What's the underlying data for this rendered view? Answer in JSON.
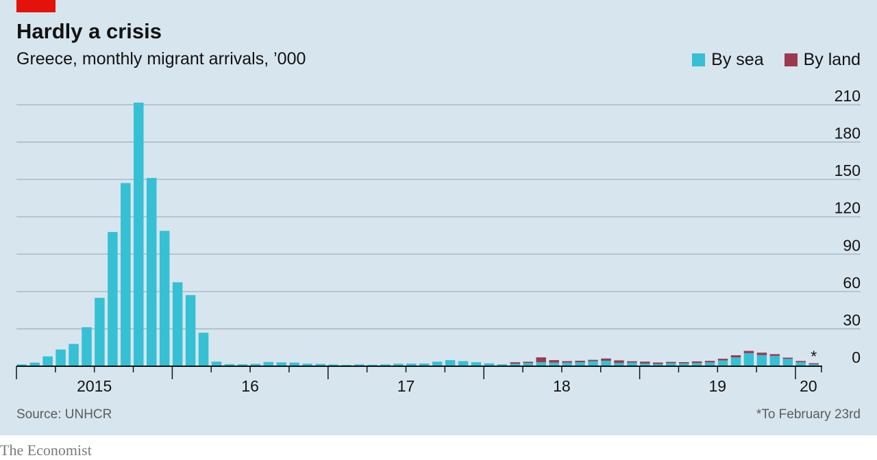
{
  "header": {
    "title": "Hardly a crisis",
    "subtitle": "Greece, monthly migrant arrivals, ’000"
  },
  "legend": [
    {
      "label": "By sea",
      "color": "#36c0d4"
    },
    {
      "label": "By land",
      "color": "#9b3a4f"
    }
  ],
  "footer": {
    "source": "Source: UNHCR",
    "footnote": "*To February 23rd",
    "brand": "The Economist"
  },
  "colors": {
    "panel": "#d7e5ee",
    "accent": "#e3120b",
    "grid": "#9fb4c2",
    "axis": "#121212"
  },
  "chart_data": {
    "type": "bar",
    "stacked": true,
    "ylim": [
      0,
      210
    ],
    "yticks": [
      0,
      30,
      60,
      90,
      120,
      150,
      180,
      210
    ],
    "y_axis_side": "right",
    "grid": true,
    "legend_position": "top-right",
    "xtick_labels": [
      {
        "label": "2015",
        "year": 2015
      },
      {
        "label": "16",
        "year": 2016
      },
      {
        "label": "17",
        "year": 2017
      },
      {
        "label": "18",
        "year": 2018
      },
      {
        "label": "19",
        "year": 2019
      },
      {
        "label": "20",
        "year": 2020
      }
    ],
    "categories": [
      "2015-01",
      "2015-02",
      "2015-03",
      "2015-04",
      "2015-05",
      "2015-06",
      "2015-07",
      "2015-08",
      "2015-09",
      "2015-10",
      "2015-11",
      "2015-12",
      "2016-01",
      "2016-02",
      "2016-03",
      "2016-04",
      "2016-05",
      "2016-06",
      "2016-07",
      "2016-08",
      "2016-09",
      "2016-10",
      "2016-11",
      "2016-12",
      "2017-01",
      "2017-02",
      "2017-03",
      "2017-04",
      "2017-05",
      "2017-06",
      "2017-07",
      "2017-08",
      "2017-09",
      "2017-10",
      "2017-11",
      "2017-12",
      "2018-01",
      "2018-02",
      "2018-03",
      "2018-04",
      "2018-05",
      "2018-06",
      "2018-07",
      "2018-08",
      "2018-09",
      "2018-10",
      "2018-11",
      "2018-12",
      "2019-01",
      "2019-02",
      "2019-03",
      "2019-04",
      "2019-05",
      "2019-06",
      "2019-07",
      "2019-08",
      "2019-09",
      "2019-10",
      "2019-11",
      "2019-12",
      "2020-01",
      "2020-02"
    ],
    "series": [
      {
        "name": "By sea",
        "values": [
          1.5,
          2.9,
          7.9,
          13.4,
          17.9,
          31.3,
          54.9,
          107.8,
          147.1,
          211.7,
          151.2,
          108.7,
          67.4,
          57.1,
          26.9,
          3.7,
          1.7,
          1.6,
          1.9,
          3.4,
          3.1,
          2.9,
          2.0,
          1.8,
          1.4,
          1.1,
          1.5,
          1.2,
          1.5,
          2.0,
          2.1,
          2.2,
          3.7,
          4.9,
          4.1,
          3.2,
          2.3,
          1.6,
          2.0,
          2.6,
          3.2,
          2.9,
          2.9,
          3.2,
          4.1,
          4.4,
          2.6,
          3.0,
          2.2,
          1.8,
          2.5,
          2.3,
          2.6,
          3.1,
          4.7,
          7.1,
          10.5,
          8.9,
          8.3,
          5.9,
          3.2,
          1.6
        ]
      },
      {
        "name": "By land",
        "values": [
          0,
          0,
          0,
          0,
          0,
          0,
          0,
          0,
          0,
          0,
          0,
          0,
          0,
          0,
          0,
          0,
          0,
          0,
          0,
          0,
          0,
          0,
          0,
          0,
          0,
          0,
          0,
          0,
          0,
          0,
          0,
          0,
          0,
          0,
          0,
          0,
          0,
          0,
          1.2,
          1.0,
          3.9,
          2.0,
          1.2,
          1.2,
          1.0,
          1.8,
          2.1,
          1.0,
          1.5,
          1.2,
          1.0,
          1.0,
          1.3,
          1.2,
          1.3,
          1.7,
          1.8,
          2.0,
          1.4,
          1.0,
          1.0,
          0.8
        ]
      }
    ],
    "annotations": [
      {
        "category": "2020-02",
        "text": "*"
      }
    ]
  }
}
